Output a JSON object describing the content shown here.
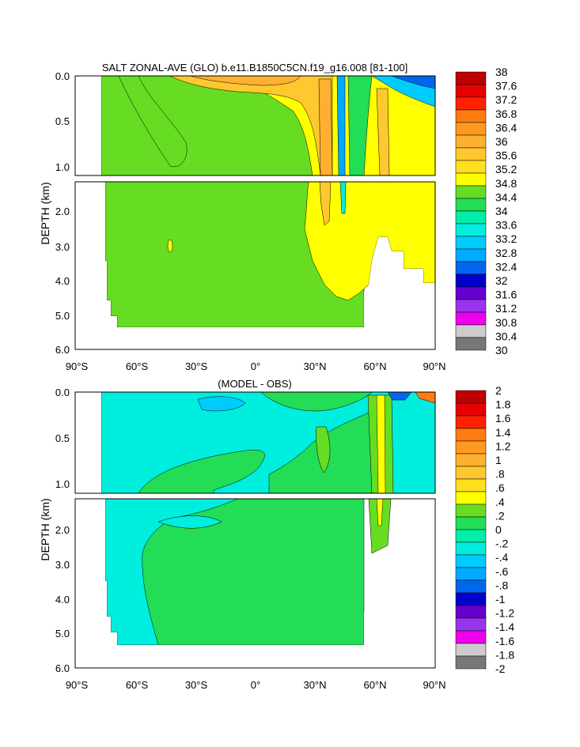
{
  "chart_data": [
    {
      "type": "heatmap",
      "title": "SALT ZONAL-AVE (GLO) b.e11.B1850C5CN.f19_g16.008 [81-100]",
      "ylabel": "DEPTH (km)",
      "xlabel": "",
      "xlim": [
        -90,
        90
      ],
      "ylim_upper_km": [
        0.0,
        1.1
      ],
      "ylim_lower_km": [
        1.1,
        6.0
      ],
      "x_ticks": [
        -90,
        -60,
        -30,
        0,
        30,
        60,
        90
      ],
      "x_tick_labels": [
        "90°S",
        "60°S",
        "30°S",
        "0°",
        "30°N",
        "60°N",
        "90°N"
      ],
      "y_ticks_upper": [
        0.0,
        0.5,
        1.0
      ],
      "y_tick_labels_upper": [
        "0.0",
        "0.5",
        "1.0"
      ],
      "y_ticks_lower": [
        2.0,
        3.0,
        4.0,
        5.0,
        6.0
      ],
      "y_tick_labels_lower": [
        "2.0",
        "3.0",
        "4.0",
        "5.0",
        "6.0"
      ],
      "colorbar_levels": [
        "38",
        "37.6",
        "37.2",
        "36.8",
        "36.4",
        "36",
        "35.6",
        "35.2",
        "34.8",
        "34.4",
        "34",
        "33.6",
        "33.2",
        "32.8",
        "32.4",
        "32",
        "31.6",
        "31.2",
        "30.8",
        "30.4",
        "30"
      ],
      "colorbar_colors": [
        "#c00000",
        "#e60000",
        "#ff2200",
        "#ff7a10",
        "#ff9a20",
        "#ffb030",
        "#ffc830",
        "#ffe020",
        "#ffff00",
        "#66dd22",
        "#22dd55",
        "#00eeaa",
        "#00eedd",
        "#00ccff",
        "#00aaff",
        "#0066ee",
        "#0000cc",
        "#6600cc",
        "#9933ee",
        "#ee00ee",
        "#cccccc",
        "#777777"
      ],
      "regions": [
        {
          "name": "34.4-34.8 (green) bulk",
          "lat": [
            -75,
            55
          ],
          "depth_km": [
            0,
            5.35
          ]
        },
        {
          "name": "34.8-35.2 (yellow) northern",
          "lat": [
            30,
            90
          ],
          "depth_km": [
            0,
            4.6
          ]
        },
        {
          "name": "35.2-36 (orange) subtropical surface",
          "lat": [
            -30,
            50
          ],
          "depth_km": [
            0,
            0.3
          ]
        },
        {
          "name": "fresh Arctic surface < 33",
          "lat": [
            62,
            90
          ],
          "depth_km": [
            0,
            0.2
          ]
        }
      ]
    },
    {
      "type": "heatmap",
      "title": "(MODEL - OBS)",
      "ylabel": "DEPTH (km)",
      "xlabel": "",
      "xlim": [
        -90,
        90
      ],
      "ylim_upper_km": [
        0.0,
        1.1
      ],
      "ylim_lower_km": [
        1.1,
        6.0
      ],
      "x_ticks": [
        -90,
        -60,
        -30,
        0,
        30,
        60,
        90
      ],
      "x_tick_labels": [
        "90°S",
        "60°S",
        "30°S",
        "0°",
        "30°N",
        "60°N",
        "90°N"
      ],
      "y_ticks_upper": [
        0.0,
        0.5,
        1.0
      ],
      "y_tick_labels_upper": [
        "0.0",
        "0.5",
        "1.0"
      ],
      "y_ticks_lower": [
        2.0,
        3.0,
        4.0,
        5.0,
        6.0
      ],
      "y_tick_labels_lower": [
        "2.0",
        "3.0",
        "4.0",
        "5.0",
        "6.0"
      ],
      "colorbar_levels": [
        "2",
        "1.8",
        "1.6",
        "1.4",
        "1.2",
        "1",
        ".8",
        ".6",
        ".4",
        ".2",
        "0",
        "-.2",
        "-.4",
        "-.6",
        "-.8",
        "-1",
        "-1.2",
        "-1.4",
        "-1.6",
        "-1.8",
        "-2"
      ],
      "colorbar_colors": [
        "#c00000",
        "#e60000",
        "#ff2200",
        "#ff7a10",
        "#ff9a20",
        "#ffb030",
        "#ffc830",
        "#ffe020",
        "#ffff00",
        "#66dd22",
        "#22dd55",
        "#00eeaa",
        "#00eedd",
        "#00ccff",
        "#00aaff",
        "#0066ee",
        "#0000cc",
        "#6600cc",
        "#9933ee",
        "#ee00ee",
        "#cccccc",
        "#777777"
      ],
      "regions": [
        {
          "name": "0 to .2 (green) bulk",
          "lat": [
            -60,
            55
          ],
          "depth_km": [
            0.8,
            5.35
          ]
        },
        {
          "name": "-.2 to 0 (cyan) upper ocean",
          "lat": [
            -75,
            25
          ],
          "depth_km": [
            0,
            0.9
          ]
        },
        {
          "name": ".2 to .6 narrow bands",
          "lat": [
            58,
            70
          ],
          "depth_km": [
            0,
            1.8
          ]
        }
      ]
    }
  ]
}
